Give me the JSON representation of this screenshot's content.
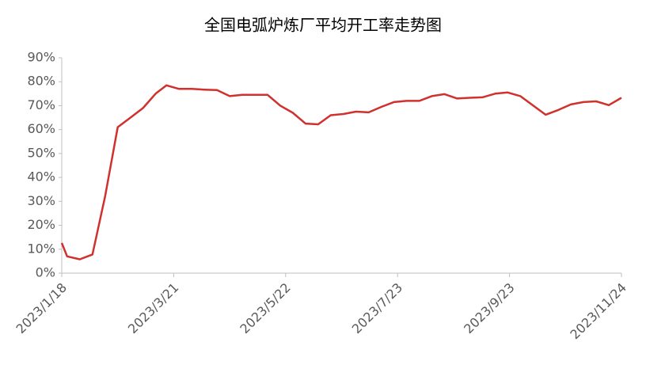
{
  "chart_data": {
    "type": "line",
    "title": "全国电弧炉炼厂平均开工率走势图",
    "x": [
      "2023/1/18",
      "2023/1/21",
      "2023/1/28",
      "2023/2/4",
      "2023/2/11",
      "2023/2/18",
      "2023/2/25",
      "2023/3/4",
      "2023/3/11",
      "2023/3/17",
      "2023/3/24",
      "2023/3/31",
      "2023/4/7",
      "2023/4/14",
      "2023/4/21",
      "2023/4/28",
      "2023/5/5",
      "2023/5/12",
      "2023/5/19",
      "2023/5/26",
      "2023/6/2",
      "2023/6/9",
      "2023/6/16",
      "2023/6/23",
      "2023/6/30",
      "2023/7/7",
      "2023/7/14",
      "2023/7/21",
      "2023/7/28",
      "2023/8/4",
      "2023/8/11",
      "2023/8/18",
      "2023/8/25",
      "2023/9/1",
      "2023/9/8",
      "2023/9/15",
      "2023/9/22",
      "2023/9/29",
      "2023/10/13",
      "2023/10/20",
      "2023/10/27",
      "2023/11/3",
      "2023/11/10",
      "2023/11/17",
      "2023/11/24"
    ],
    "series": [
      {
        "name": "开工率",
        "color": "#d0312d",
        "values": [
          12.6,
          7.0,
          5.8,
          7.8,
          32,
          61,
          65,
          69,
          75,
          78.5,
          77,
          77,
          76.7,
          76.5,
          74,
          74.5,
          74.5,
          74.5,
          70,
          67,
          62.5,
          62.2,
          66,
          66.5,
          67.5,
          67.2,
          69.5,
          71.5,
          72,
          72,
          74,
          74.8,
          73,
          73.3,
          73.5,
          75,
          75.5,
          74,
          66.2,
          68.2,
          70.5,
          71.5,
          71.8,
          70.2,
          73.3
        ]
      }
    ],
    "xlim": [
      "2023/1/18",
      "2023/11/24"
    ],
    "xticks": [
      "2023/1/18",
      "2023/3/21",
      "2023/5/22",
      "2023/7/23",
      "2023/9/23",
      "2023/11/24"
    ],
    "ylim": [
      0,
      90
    ],
    "yticks": [
      {
        "value": 0,
        "label": "0%"
      },
      {
        "value": 10,
        "label": "10%"
      },
      {
        "value": 20,
        "label": "20%"
      },
      {
        "value": 30,
        "label": "30%"
      },
      {
        "value": 40,
        "label": "40%"
      },
      {
        "value": 50,
        "label": "50%"
      },
      {
        "value": 60,
        "label": "60%"
      },
      {
        "value": 70,
        "label": "70%"
      },
      {
        "value": 80,
        "label": "80%"
      },
      {
        "value": 90,
        "label": "90%"
      }
    ]
  }
}
